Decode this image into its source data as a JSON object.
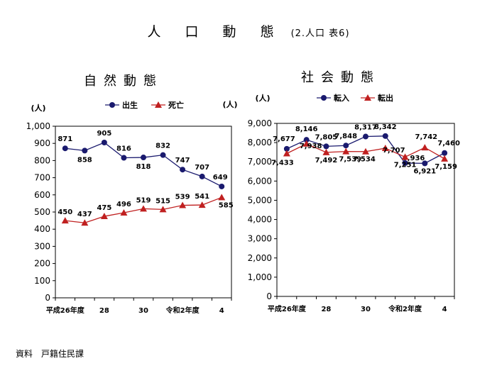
{
  "page_title": "人 口 動 態",
  "page_subtitle": "(2.人口 表6)",
  "source": "資料　戸籍住民課",
  "colors": {
    "primary": "#1a1a6e",
    "secondary": "#c02020",
    "axis": "#000000"
  },
  "chart_data": [
    {
      "type": "line",
      "title": "自然動態",
      "ylabel": "(人)",
      "ylim": [
        0,
        1000
      ],
      "ytick_step": 100,
      "x_tick_labels": [
        "平成26年度",
        "28",
        "30",
        "令和2年度",
        "4"
      ],
      "x_tick_positions": [
        0,
        2,
        4,
        6,
        8
      ],
      "series": [
        {
          "name": "出生",
          "marker": "circle",
          "values": [
            871,
            858,
            905,
            816,
            818,
            832,
            747,
            707,
            649
          ]
        },
        {
          "name": "死亡",
          "marker": "triangle",
          "values": [
            450,
            437,
            475,
            496,
            519,
            515,
            539,
            541,
            585
          ]
        }
      ]
    },
    {
      "type": "line",
      "title": "社会動態",
      "ylabel": "(人)",
      "ylim": [
        0,
        9000
      ],
      "ytick_step": 1000,
      "x_tick_labels": [
        "平成26年度",
        "28",
        "30",
        "令和2年度",
        "4"
      ],
      "x_tick_positions": [
        0,
        2,
        4,
        6,
        8
      ],
      "series": [
        {
          "name": "転入",
          "marker": "circle",
          "values": [
            7677,
            8146,
            7805,
            7848,
            8317,
            8342,
            6936,
            6921,
            7460
          ]
        },
        {
          "name": "転出",
          "marker": "triangle",
          "values": [
            7433,
            7938,
            7492,
            7539,
            7534,
            7707,
            7251,
            7742,
            7159
          ]
        }
      ]
    }
  ]
}
